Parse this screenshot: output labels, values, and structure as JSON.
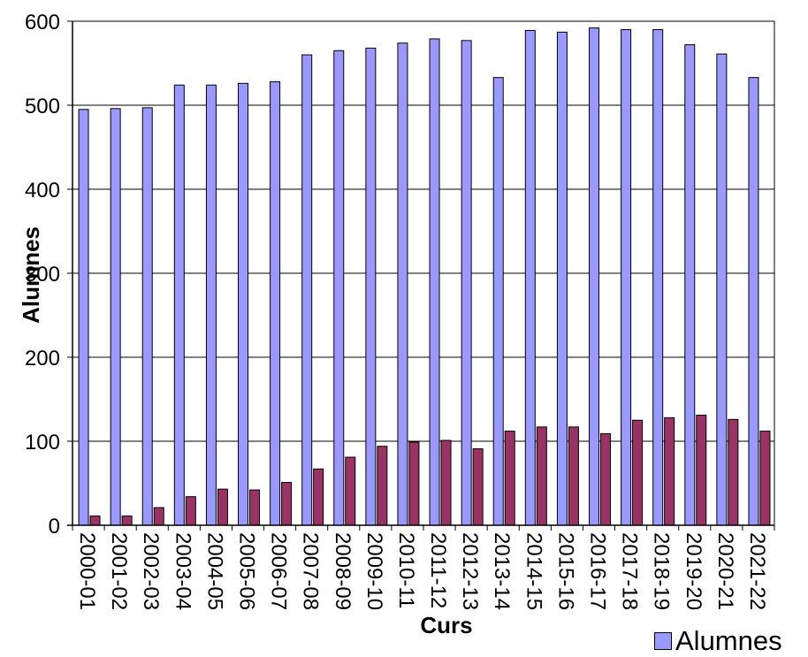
{
  "chart_data": {
    "type": "bar",
    "title": "",
    "xlabel": "Curs",
    "ylabel": "Alumnes",
    "ylim": [
      0,
      600
    ],
    "yticks": [
      0,
      100,
      200,
      300,
      400,
      500,
      600
    ],
    "grid": true,
    "legend_position": "bottom-right",
    "categories": [
      "2000-01",
      "2001-02",
      "2002-03",
      "2003-04",
      "2004-05",
      "2005-06",
      "2006-07",
      "2007-08",
      "2008-09",
      "2009-10",
      "2010-11",
      "2011-12",
      "2012-13",
      "2013-14",
      "2014-15",
      "2015-16",
      "2016-17",
      "2017-18",
      "2018-19",
      "2019-20",
      "2020-21",
      "2021-22"
    ],
    "series": [
      {
        "name": "Alumnes",
        "color": "#9999ff",
        "values": [
          495,
          496,
          497,
          524,
          524,
          526,
          528,
          560,
          565,
          568,
          574,
          579,
          577,
          533,
          589,
          587,
          592,
          590,
          590,
          572,
          561,
          533
        ]
      },
      {
        "color": "#993366",
        "values": [
          11,
          11,
          21,
          34,
          43,
          42,
          51,
          67,
          81,
          94,
          99,
          101,
          91,
          112,
          117,
          117,
          109,
          125,
          128,
          131,
          126,
          112
        ]
      }
    ]
  }
}
